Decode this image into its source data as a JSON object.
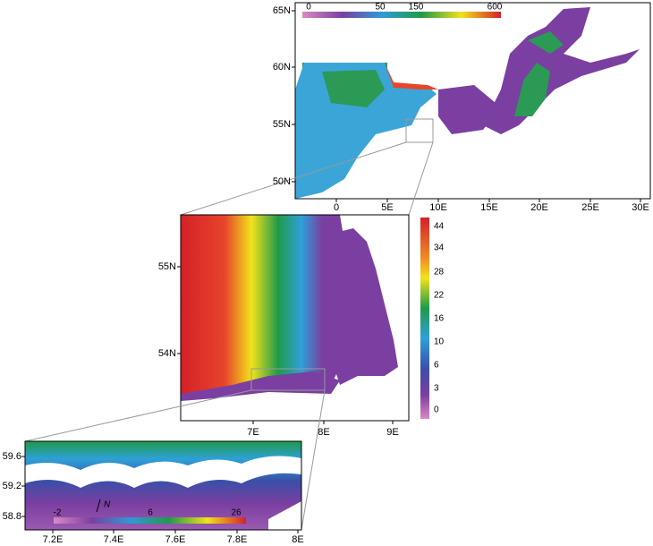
{
  "panels": [
    {
      "xticks": [
        "0",
        "5E",
        "10E",
        "15E",
        "20E",
        "25E",
        "30E"
      ],
      "yticks": [
        "65N",
        "60N",
        "55N",
        "50N"
      ],
      "colorbar": [
        "0",
        "50",
        "150",
        "600"
      ]
    },
    {
      "xticks": [
        "7E",
        "8E",
        "9E"
      ],
      "yticks": [
        "55N",
        "54N"
      ],
      "colorbar": [
        "44",
        "34",
        "28",
        "22",
        "16",
        "10",
        "6",
        "3",
        "0"
      ]
    },
    {
      "xticks": [
        "7.2E",
        "7.4E",
        "7.6E",
        "7.8E",
        "8E"
      ],
      "yticks": [
        "59.6",
        "59.2",
        "58.8"
      ],
      "colorbar": [
        "-2",
        "6",
        "26"
      ],
      "north": "N"
    }
  ]
}
